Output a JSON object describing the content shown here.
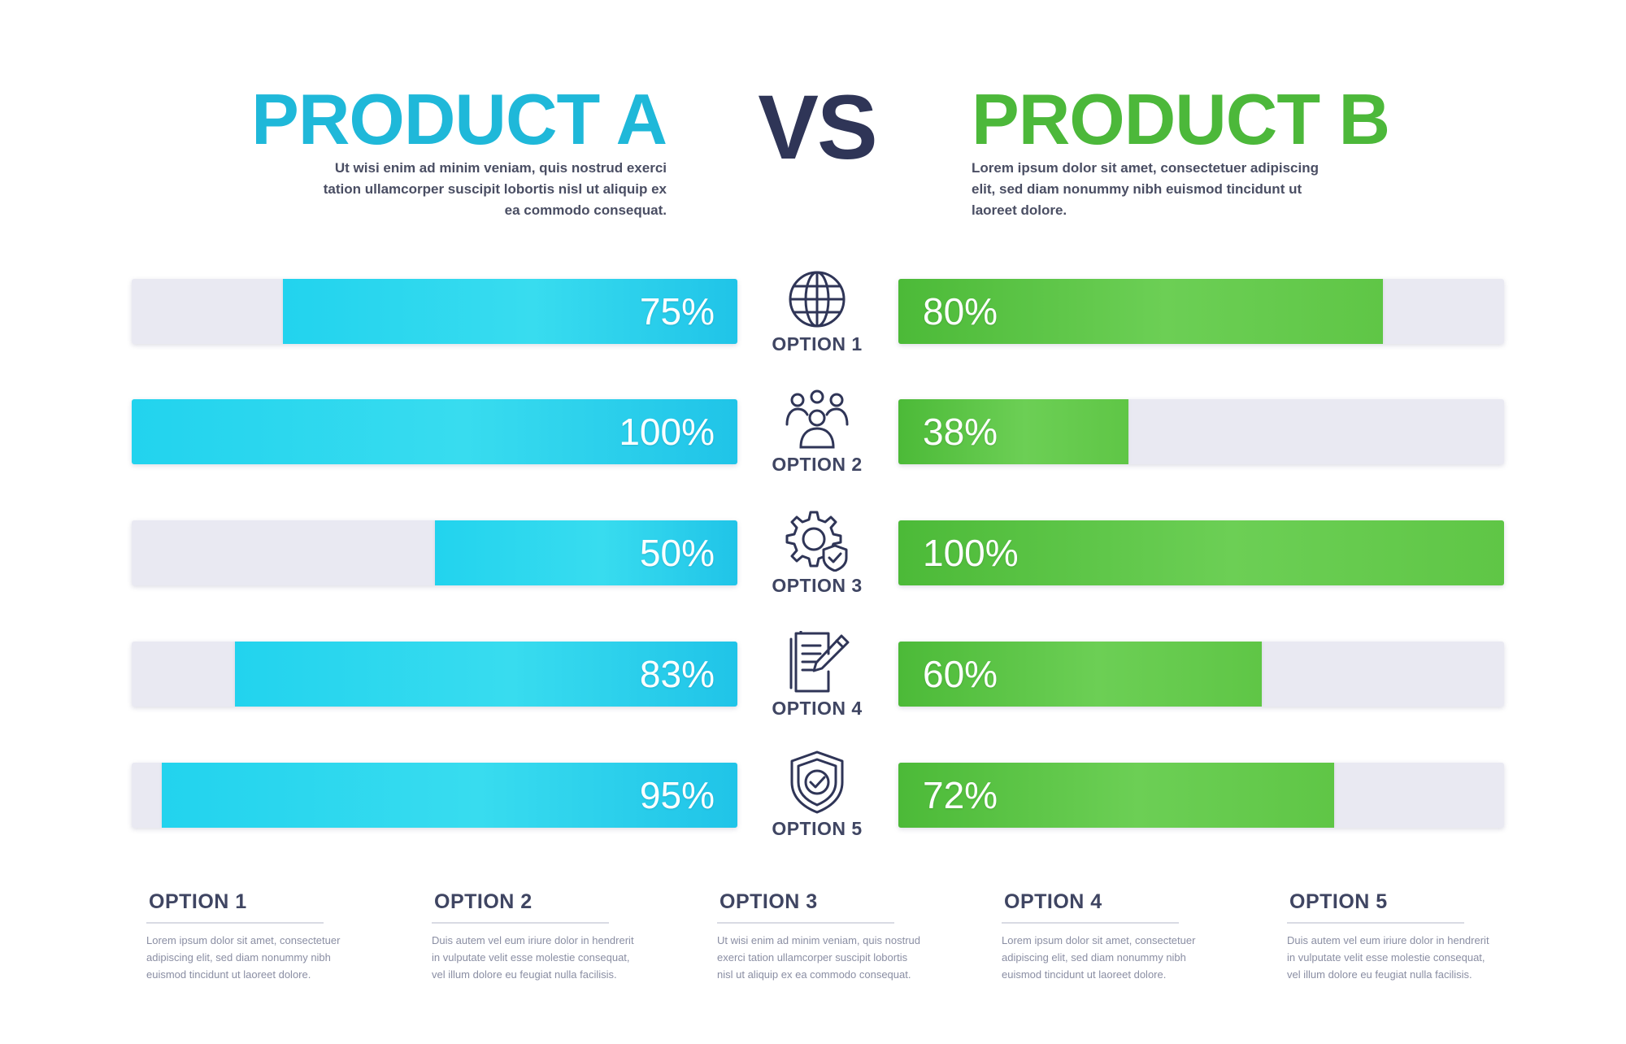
{
  "header": {
    "product_a": "PRODUCT A",
    "product_b": "PRODUCT B",
    "vs": "VS",
    "desc_a": "Ut wisi enim ad minim veniam, quis nostrud exerci tation ullamcorper suscipit lobortis nisl ut aliquip ex ea commodo consequat.",
    "desc_b": "Lorem ipsum dolor sit amet, consectetuer adipiscing elit, sed diam nonummy nibh euismod tincidunt ut laoreet dolore."
  },
  "colors": {
    "product_a": "#1fb8d9",
    "product_b": "#4cb83a",
    "vs": "#2f3557",
    "track": "#e9e9f2"
  },
  "options": [
    {
      "label": "OPTION 1",
      "icon": "globe-icon"
    },
    {
      "label": "OPTION 2",
      "icon": "team-icon"
    },
    {
      "label": "OPTION 3",
      "icon": "gear-shield-icon"
    },
    {
      "label": "OPTION 4",
      "icon": "document-edit-icon"
    },
    {
      "label": "OPTION 5",
      "icon": "shield-check-icon"
    }
  ],
  "chart_data": {
    "type": "bar",
    "orientation": "horizontal",
    "categories": [
      "OPTION 1",
      "OPTION 2",
      "OPTION 3",
      "OPTION 4",
      "OPTION 5"
    ],
    "series": [
      {
        "name": "PRODUCT A",
        "values": [
          75,
          100,
          50,
          83,
          95
        ],
        "labels": [
          "75%",
          "100%",
          "50%",
          "83%",
          "95%"
        ],
        "direction": "right-to-left"
      },
      {
        "name": "PRODUCT B",
        "values": [
          80,
          38,
          100,
          60,
          72
        ],
        "labels": [
          "80%",
          "38%",
          "100%",
          "60%",
          "72%"
        ],
        "direction": "left-to-right"
      }
    ],
    "xlim": [
      0,
      100
    ],
    "unit": "%"
  },
  "footer": {
    "cards": [
      {
        "title": "OPTION 1",
        "text": "Lorem ipsum dolor sit amet, consectetuer adipiscing elit, sed diam nonummy nibh euismod tincidunt ut laoreet dolore."
      },
      {
        "title": "OPTION 2",
        "text": "Duis autem vel eum iriure dolor in hendrerit in vulputate velit esse molestie consequat, vel illum dolore eu feugiat nulla facilisis."
      },
      {
        "title": "OPTION 3",
        "text": "Ut wisi enim ad minim veniam, quis nostrud exerci tation ullamcorper suscipit lobortis nisl ut aliquip ex ea commodo consequat."
      },
      {
        "title": "OPTION 4",
        "text": "Lorem ipsum dolor sit amet, consectetuer adipiscing elit, sed diam nonummy nibh euismod tincidunt ut laoreet dolore."
      },
      {
        "title": "OPTION 5",
        "text": "Duis autem vel eum iriure dolor in hendrerit in vulputate velit esse molestie consequat, vel illum dolore eu feugiat nulla facilisis."
      }
    ]
  }
}
